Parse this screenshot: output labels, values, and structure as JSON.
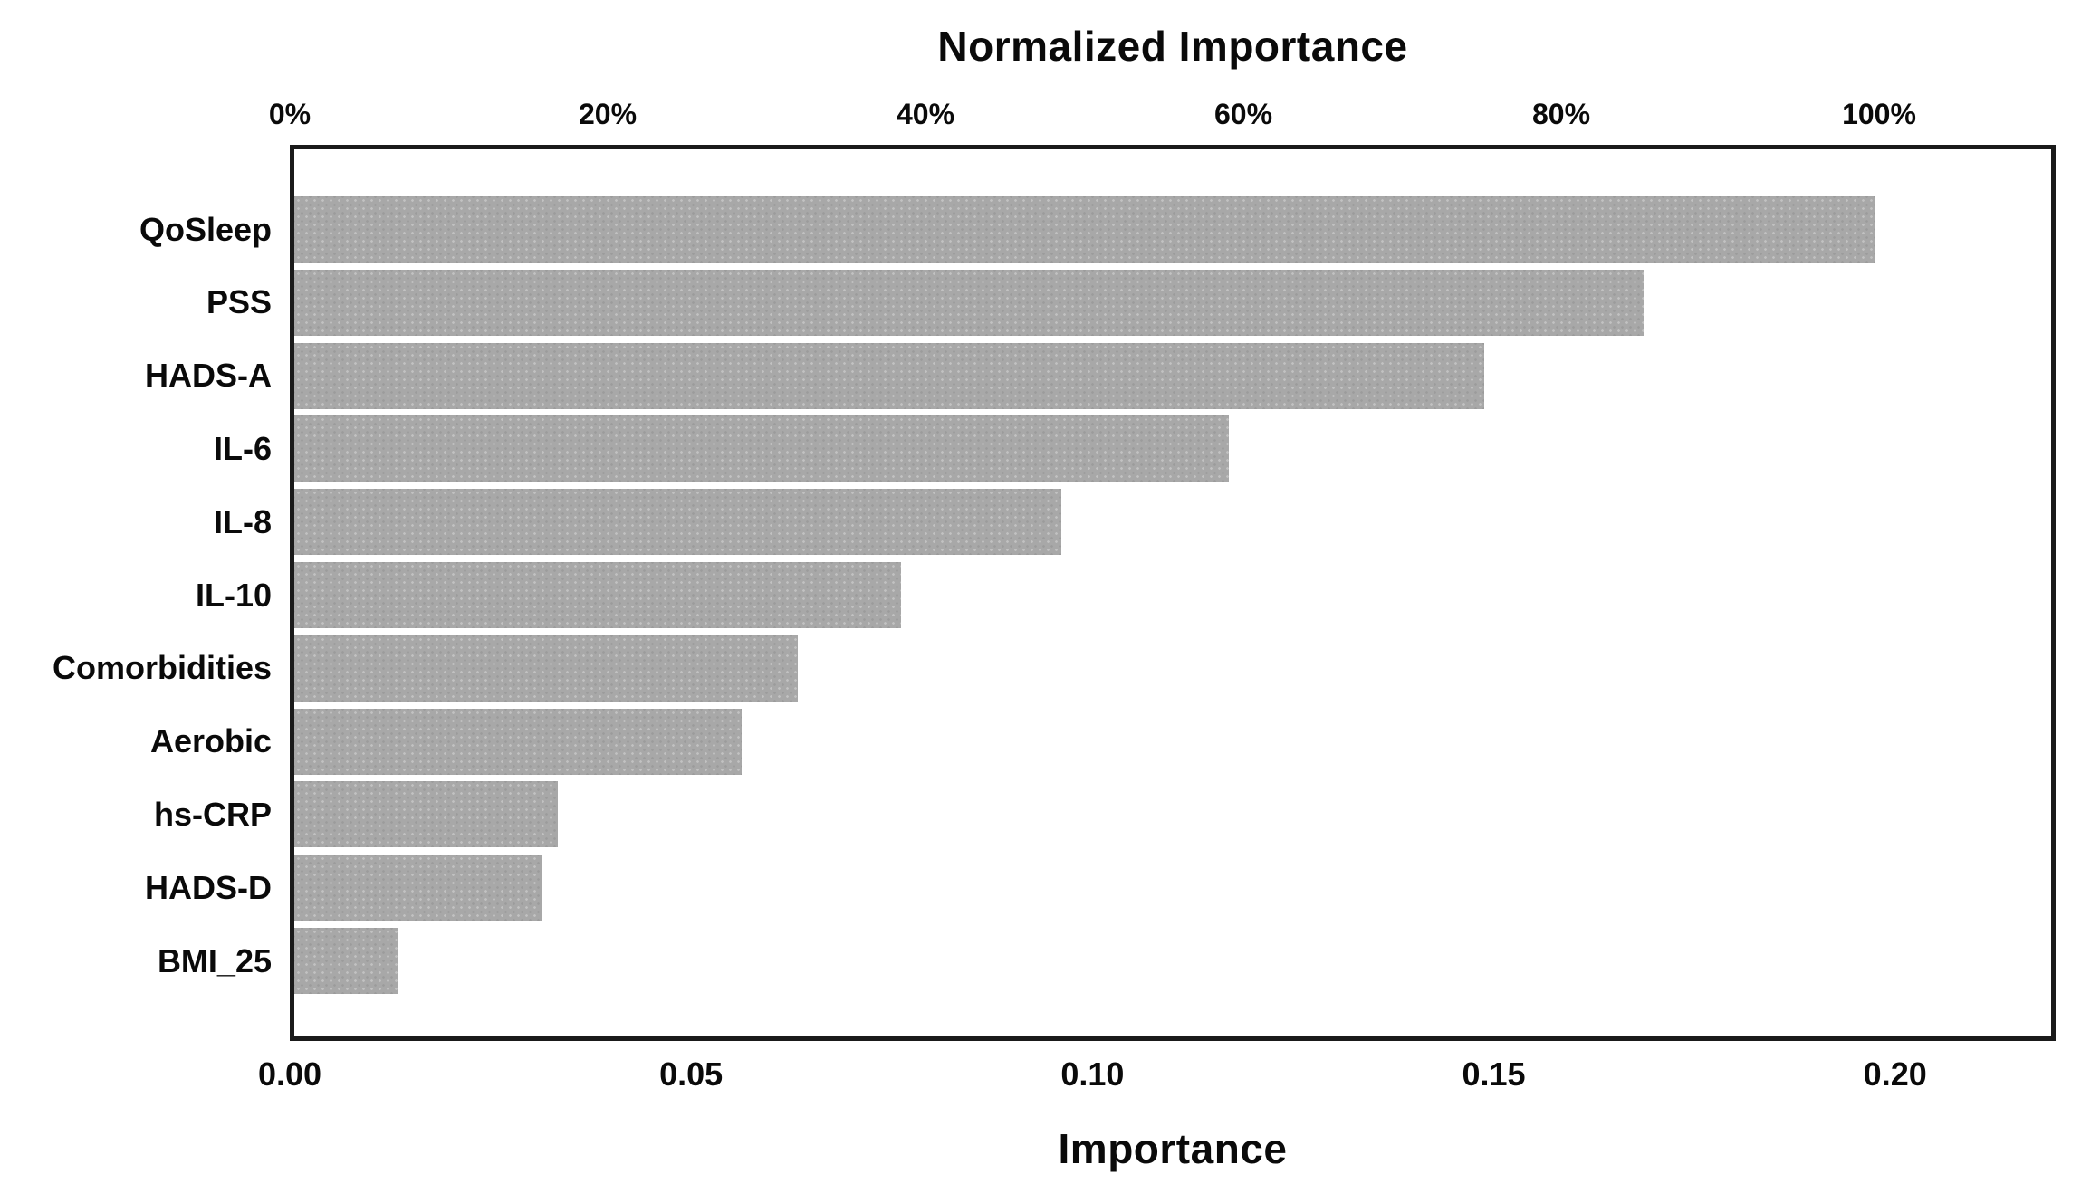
{
  "chart_data": {
    "type": "bar",
    "orientation": "horizontal",
    "title": "Normalized Importance",
    "xlabel": "Importance",
    "legend": false,
    "grid": false,
    "bar_color": "#a8a8a8",
    "border_color": "#1a1a1a",
    "categories": [
      "QoSleep",
      "PSS",
      "HADS-A",
      "IL-6",
      "IL-8",
      "IL-10",
      "Comorbidities",
      "Aerobic",
      "hs-CRP",
      "HADS-D",
      "BMI_25"
    ],
    "values": [
      0.198,
      0.169,
      0.149,
      0.117,
      0.096,
      0.076,
      0.063,
      0.056,
      0.033,
      0.031,
      0.013
    ],
    "normalized_percent": [
      100,
      85,
      75,
      59,
      48,
      38,
      32,
      28,
      17,
      16,
      7
    ],
    "bottom_axis": {
      "label": "Importance",
      "ticks": [
        "0.00",
        "0.05",
        "0.10",
        "0.15",
        "0.20"
      ],
      "tick_values": [
        0.0,
        0.05,
        0.1,
        0.15,
        0.2
      ],
      "range": [
        0,
        0.22
      ]
    },
    "top_axis": {
      "label": "Normalized Importance",
      "ticks": [
        "0%",
        "20%",
        "40%",
        "60%",
        "80%",
        "100%"
      ],
      "tick_values": [
        0,
        20,
        40,
        60,
        80,
        100
      ],
      "max_importance": 0.198
    }
  }
}
